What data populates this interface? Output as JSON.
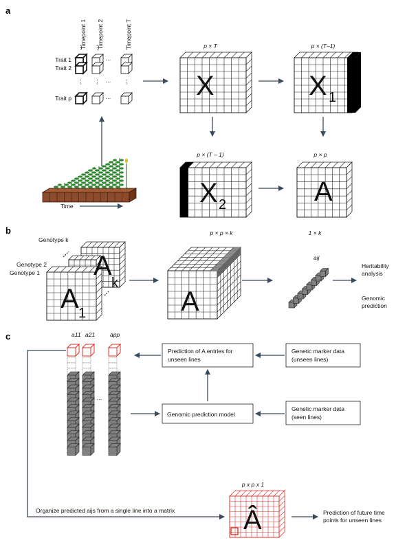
{
  "panel_a": {
    "letter": "a",
    "timepoints": [
      "Timepoint 1",
      "Timepoint 2",
      "Timepoint T"
    ],
    "traits": [
      "Trait 1",
      "Trait 2",
      "Trait p"
    ],
    "time_label": "Time",
    "dims_X": "p × T",
    "dims_X1": "p × (T–1)",
    "dims_X2": "p × (T – 1)",
    "dims_A": "p × p",
    "label_X": "X",
    "label_X1_main": "X",
    "label_X1_sub": "1",
    "label_X2_main": "X",
    "label_X2_sub": "2",
    "label_A": "A"
  },
  "panel_b": {
    "letter": "b",
    "genotypes": [
      "Genotype k",
      "Genotype 2",
      "Genotype 1"
    ],
    "stack_main": "A",
    "stack_sub1": "1",
    "stack_subk": "k",
    "dims_cube": "p × p × k",
    "cube_label": "A",
    "dims_vec": "1 × k",
    "vec_label": "aij",
    "outputs": [
      "Heritability analysis",
      "Genomic prediction"
    ]
  },
  "panel_c": {
    "letter": "c",
    "col_labels": [
      "a11",
      "a21",
      "app"
    ],
    "ellipsis": "···",
    "box_predict": [
      "Prediction of A entries for",
      "unseen lines"
    ],
    "box_marker_unseen": [
      "Genetic marker data",
      "(unseen lines)"
    ],
    "box_model": "Genomic prediction model",
    "box_marker_seen": [
      "Genetic marker data",
      "(seen lines)"
    ],
    "organize": "Organize predicted aijs from a single line into a matrix",
    "dims_hat": "p x p x 1",
    "hat_label": "Â",
    "future": [
      "Prediction of future time",
      "points for unseen lines"
    ]
  },
  "colors": {
    "arrow": "#3a4a5c",
    "soil": "#8b4a2b",
    "plant": "#2f8a2f",
    "red": "#e0302a",
    "gray_cell": "#808080"
  }
}
